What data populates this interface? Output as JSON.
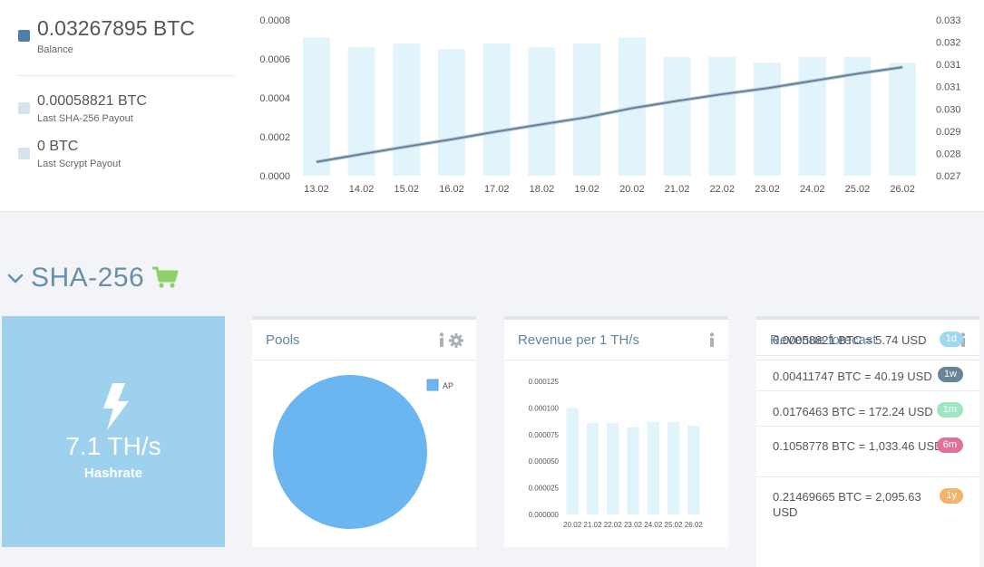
{
  "balance": {
    "main_value": "0.03267895 BTC",
    "main_label": "Balance",
    "sha_value": "0.00058821 BTC",
    "sha_label": "Last SHA-256 Payout",
    "scrypt_value": "0 BTC",
    "scrypt_label": "Last Scrypt Payout",
    "colors": {
      "main": "#4f7fa6",
      "secondary": "#d6e3eb"
    }
  },
  "section": {
    "title": "SHA-256",
    "chevron_icon": "chevron-down-icon",
    "cart_icon": "shopping-cart-icon",
    "cart_color": "#8dd16b"
  },
  "hashrate": {
    "value": "7.1 TH/s",
    "label": "Hashrate",
    "icon": "lightning-icon"
  },
  "pools": {
    "title": "Pools",
    "info_icon": "info-icon",
    "settings_icon": "gear-icon"
  },
  "revenue_per_th": {
    "title": "Revenue per 1 TH/s",
    "info_icon": "info-icon"
  },
  "forecast": {
    "title": "Revenue forecast",
    "info_icon": "info-icon",
    "rows": [
      {
        "text": "0.00058821 BTC = 5.74 USD",
        "badge": "1d",
        "color": "#9fd8ef"
      },
      {
        "text": "0.00411747 BTC = 40.19 USD",
        "badge": "1w",
        "color": "#6a8597"
      },
      {
        "text": "0.0176463 BTC = 172.24 USD",
        "badge": "1m",
        "color": "#9fe6c0"
      },
      {
        "text": "0.1058778 BTC = 1,033.46 USD",
        "badge": "6m",
        "color": "#e0709c"
      },
      {
        "text": "0.21469665 BTC = 2,095.63 USD",
        "badge": "1y",
        "color": "#f2b36a"
      }
    ]
  },
  "chart_data": [
    {
      "type": "bar+line",
      "categories": [
        "13.02",
        "14.02",
        "15.02",
        "16.02",
        "17.02",
        "18.02",
        "19.02",
        "20.02",
        "21.02",
        "22.02",
        "23.02",
        "24.02",
        "25.02",
        "26.02"
      ],
      "series": [
        {
          "axis": "left",
          "type": "bar",
          "color": "#e1f3fb",
          "values": [
            0.00071,
            0.00066,
            0.00068,
            0.00065,
            0.00068,
            0.00066,
            0.00068,
            0.00071,
            0.00061,
            0.00061,
            0.00058,
            0.00061,
            0.00061,
            0.00058
          ]
        },
        {
          "axis": "right",
          "type": "line",
          "color": "#5f7f96",
          "values": [
            0.02753,
            0.02783,
            0.02812,
            0.0284,
            0.0287,
            0.02898,
            0.02925,
            0.0296,
            0.02988,
            0.03014,
            0.03037,
            0.03065,
            0.03093,
            0.03118
          ]
        }
      ],
      "ylim_left": [
        0,
        0.0008
      ],
      "yticks_left": [
        "0.0000",
        "0.0002",
        "0.0004",
        "0.0006",
        "0.0008"
      ],
      "ylim_right": [
        0.027,
        0.033
      ],
      "yticks_right": [
        "0.027",
        "0.028",
        "0.029",
        "0.030",
        "0.031",
        "0.031",
        "0.032",
        "0.033"
      ],
      "grid": false
    },
    {
      "type": "pie",
      "categories": [
        "AP"
      ],
      "values": [
        1
      ],
      "colors": [
        "#6bb5f0"
      ],
      "legend": "top-right"
    },
    {
      "type": "bar",
      "categories": [
        "20.02",
        "21.02",
        "22.02",
        "23.02",
        "24.02",
        "25.02",
        "26.02"
      ],
      "values": [
        0.0001,
        8.6e-05,
        8.6e-05,
        8.2e-05,
        8.7e-05,
        8.7e-05,
        8.3e-05
      ],
      "ylim": [
        0,
        0.000125
      ],
      "yticks": [
        "0.000000",
        "0.000025",
        "0.000050",
        "0.000075",
        "0.000100",
        "0.000125"
      ],
      "color": "#e1f3fb",
      "grid": false
    }
  ]
}
